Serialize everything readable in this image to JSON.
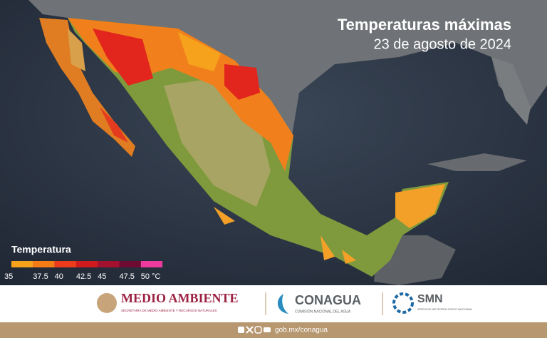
{
  "header": {
    "title": "Temperaturas máximas",
    "date": "23 de agosto de 2024"
  },
  "legend": {
    "title": "Temperatura",
    "items": [
      {
        "label": "35",
        "color": "#f7a21b"
      },
      {
        "label": "37.5",
        "color": "#f47b16"
      },
      {
        "label": "40",
        "color": "#ee3b1c"
      },
      {
        "label": "42.5",
        "color": "#d01b1e"
      },
      {
        "label": "45",
        "color": "#a3112f"
      },
      {
        "label": "47.5",
        "color": "#6e0b33"
      },
      {
        "label": "50 °C",
        "color": "#ee3a9c"
      }
    ]
  },
  "footer": {
    "semarnat": {
      "name": "MEDIO AMBIENTE",
      "sub": "SECRETARÍA DE MEDIO AMBIENTE Y RECURSOS NATURALES"
    },
    "conagua": {
      "name": "CONAGUA",
      "sub": "COMISIÓN NACIONAL DEL AGUA"
    },
    "smn": {
      "name": "SMN",
      "sub": "SERVICIO METEOROLÓGICO NACIONAL"
    },
    "url": "gob.mx/conagua"
  }
}
